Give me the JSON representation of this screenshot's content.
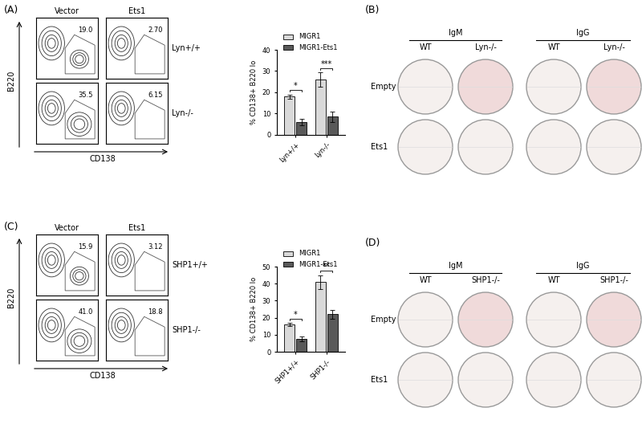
{
  "chart_data": [
    {
      "type": "bar",
      "y_label": "% CD138+ B220 lo",
      "categories": [
        "Lyn+/+",
        "Lyn-/-"
      ],
      "series": [
        {
          "name": "MIGR1",
          "color": "#d9d9d9",
          "values": [
            18,
            26
          ],
          "errors": [
            1,
            3.5
          ]
        },
        {
          "name": "MIGR1-Ets1",
          "color": "#595959",
          "values": [
            6,
            8.5
          ],
          "errors": [
            1.5,
            2.5
          ]
        }
      ],
      "ylim": [
        0,
        40
      ],
      "yticks": [
        0,
        10,
        20,
        30,
        40
      ],
      "legend": "upper left",
      "annotations": [
        "*",
        "***"
      ]
    },
    {
      "type": "bar",
      "y_label": "% CD138+ B220 lo",
      "categories": [
        "SHP1+/+",
        "SHP1-/-"
      ],
      "series": [
        {
          "name": "MIGR1",
          "color": "#d9d9d9",
          "values": [
            16,
            41
          ],
          "errors": [
            1,
            4
          ]
        },
        {
          "name": "MIGR1-Ets1",
          "color": "#595959",
          "values": [
            7.5,
            22
          ],
          "errors": [
            1.5,
            2.5
          ]
        }
      ],
      "ylim": [
        0,
        50
      ],
      "yticks": [
        0,
        10,
        20,
        30,
        40,
        50
      ],
      "legend": "upper left",
      "annotations": [
        "*",
        "**"
      ]
    }
  ],
  "figure": {
    "flow_panels": [
      {
        "label": "(A)",
        "columns": [
          "Vector",
          "Ets1"
        ],
        "rows": [
          "Lyn+/+",
          "Lyn-/-"
        ],
        "gate_values": [
          [
            "19.0",
            "2.70"
          ],
          [
            "35.5",
            "6.15"
          ]
        ],
        "x_label": "CD138",
        "y_label": "B220"
      },
      {
        "label": "(C)",
        "columns": [
          "Vector",
          "Ets1"
        ],
        "rows": [
          "SHP1+/+",
          "SHP1-/-"
        ],
        "gate_values": [
          [
            "15.9",
            "3.12"
          ],
          [
            "41.0",
            "18.8"
          ]
        ],
        "x_label": "CD138",
        "y_label": "B220"
      }
    ],
    "elispot_panels": [
      {
        "label": "(B)",
        "groups": [
          "IgM",
          "IgG"
        ],
        "columns": [
          "WT",
          "Lyn-/-"
        ],
        "rows": [
          "Empty",
          "Ets1"
        ]
      },
      {
        "label": "(D)",
        "groups": [
          "IgM",
          "IgG"
        ],
        "columns": [
          "WT",
          "SHP1-/-"
        ],
        "rows": [
          "Empty",
          "Ets1"
        ]
      }
    ]
  }
}
